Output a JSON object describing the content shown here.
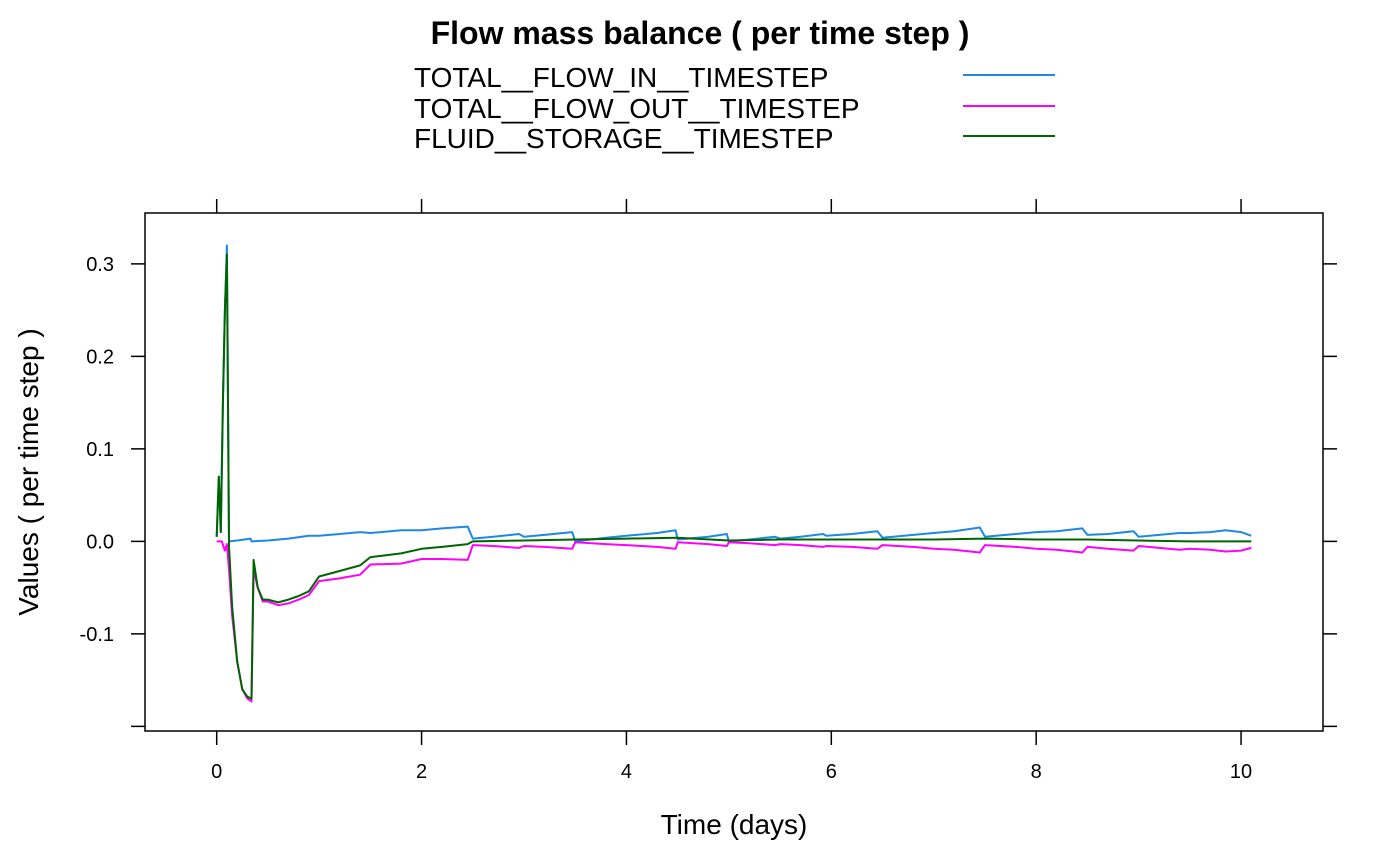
{
  "chart_data": {
    "type": "line",
    "title": "Flow mass balance ( per time step )",
    "xlabel": "Time (days)",
    "ylabel": "Values ( per time step )",
    "xlim": [
      -0.7,
      10.8
    ],
    "ylim": [
      -0.205,
      0.355
    ],
    "x_ticks": [
      0,
      2,
      4,
      6,
      8,
      10
    ],
    "x_tick_labels": [
      "0",
      "2",
      "4",
      "6",
      "8",
      "10"
    ],
    "y_ticks": [
      0.3,
      0.2,
      0.1,
      0.0,
      -0.1,
      -0.2
    ],
    "y_tick_labels": [
      "0.3",
      "0.2",
      "0.1",
      "0.0",
      "-0.1",
      ""
    ],
    "grid": false,
    "legend_position": "top",
    "series": [
      {
        "name": "TOTAL__FLOW_IN__TIMESTEP",
        "color": "#1e88e5",
        "x": [
          0.0,
          0.02,
          0.04,
          0.06,
          0.08,
          0.1,
          0.12,
          0.2,
          0.33,
          0.34,
          0.5,
          0.7,
          0.9,
          1.0,
          1.2,
          1.4,
          1.5,
          1.8,
          2.0,
          2.2,
          2.45,
          2.5,
          2.7,
          2.95,
          3.0,
          3.2,
          3.47,
          3.5,
          3.8,
          4.0,
          4.3,
          4.48,
          4.5,
          4.8,
          4.98,
          5.0,
          5.2,
          5.45,
          5.5,
          5.7,
          5.92,
          5.95,
          6.2,
          6.45,
          6.5,
          6.8,
          7.0,
          7.2,
          7.45,
          7.5,
          7.8,
          8.0,
          8.2,
          8.45,
          8.5,
          8.7,
          8.95,
          9.0,
          9.2,
          9.4,
          9.5,
          9.7,
          9.85,
          10.0,
          10.1
        ],
        "y": [
          0.005,
          0.07,
          0.01,
          0.15,
          0.25,
          0.32,
          0.0,
          0.001,
          0.003,
          0.0,
          0.001,
          0.003,
          0.006,
          0.006,
          0.008,
          0.01,
          0.009,
          0.012,
          0.012,
          0.014,
          0.016,
          0.003,
          0.005,
          0.008,
          0.005,
          0.007,
          0.01,
          0.0,
          0.004,
          0.006,
          0.009,
          0.012,
          0.002,
          0.005,
          0.008,
          0.0,
          0.002,
          0.005,
          0.003,
          0.005,
          0.008,
          0.006,
          0.008,
          0.011,
          0.004,
          0.007,
          0.009,
          0.011,
          0.015,
          0.005,
          0.008,
          0.01,
          0.011,
          0.014,
          0.007,
          0.008,
          0.011,
          0.005,
          0.007,
          0.009,
          0.009,
          0.01,
          0.012,
          0.01,
          0.006
        ]
      },
      {
        "name": "TOTAL__FLOW_OUT__TIMESTEP",
        "color": "#ff00ff",
        "x": [
          0.0,
          0.05,
          0.08,
          0.1,
          0.12,
          0.15,
          0.2,
          0.25,
          0.3,
          0.34,
          0.36,
          0.4,
          0.45,
          0.5,
          0.6,
          0.7,
          0.8,
          0.9,
          1.0,
          1.2,
          1.4,
          1.5,
          1.8,
          2.0,
          2.2,
          2.45,
          2.5,
          2.7,
          2.95,
          3.0,
          3.2,
          3.47,
          3.5,
          3.8,
          4.0,
          4.3,
          4.48,
          4.5,
          4.8,
          4.98,
          5.0,
          5.2,
          5.45,
          5.5,
          5.7,
          5.92,
          5.95,
          6.2,
          6.45,
          6.5,
          6.8,
          7.0,
          7.2,
          7.45,
          7.5,
          7.8,
          8.0,
          8.2,
          8.45,
          8.5,
          8.7,
          8.95,
          9.0,
          9.2,
          9.4,
          9.5,
          9.7,
          9.85,
          10.0,
          10.1
        ],
        "y": [
          0.0,
          0.0,
          -0.01,
          -0.003,
          -0.03,
          -0.08,
          -0.13,
          -0.16,
          -0.17,
          -0.173,
          -0.03,
          -0.05,
          -0.065,
          -0.065,
          -0.069,
          -0.067,
          -0.063,
          -0.058,
          -0.043,
          -0.04,
          -0.036,
          -0.025,
          -0.024,
          -0.019,
          -0.019,
          -0.02,
          -0.004,
          -0.005,
          -0.007,
          -0.005,
          -0.006,
          -0.008,
          -0.001,
          -0.003,
          -0.004,
          -0.006,
          -0.008,
          -0.001,
          -0.003,
          -0.005,
          -0.001,
          -0.002,
          -0.004,
          -0.003,
          -0.004,
          -0.006,
          -0.005,
          -0.006,
          -0.008,
          -0.004,
          -0.006,
          -0.008,
          -0.009,
          -0.012,
          -0.004,
          -0.006,
          -0.008,
          -0.009,
          -0.012,
          -0.006,
          -0.008,
          -0.01,
          -0.005,
          -0.007,
          -0.009,
          -0.008,
          -0.009,
          -0.011,
          -0.01,
          -0.007
        ]
      },
      {
        "name": "FLUID__STORAGE__TIMESTEP",
        "color": "#006400",
        "x": [
          0.0,
          0.02,
          0.04,
          0.06,
          0.08,
          0.1,
          0.12,
          0.15,
          0.2,
          0.25,
          0.3,
          0.34,
          0.36,
          0.4,
          0.45,
          0.5,
          0.6,
          0.7,
          0.8,
          0.9,
          1.0,
          1.2,
          1.4,
          1.5,
          1.8,
          2.0,
          2.2,
          2.45,
          2.5,
          3.0,
          3.5,
          4.0,
          4.5,
          5.0,
          5.5,
          6.0,
          6.5,
          7.0,
          7.5,
          8.0,
          8.5,
          9.0,
          9.5,
          10.0,
          10.1
        ],
        "y": [
          0.005,
          0.07,
          0.01,
          0.15,
          0.25,
          0.31,
          -0.005,
          -0.07,
          -0.13,
          -0.16,
          -0.168,
          -0.17,
          -0.02,
          -0.05,
          -0.063,
          -0.063,
          -0.066,
          -0.063,
          -0.059,
          -0.054,
          -0.038,
          -0.032,
          -0.026,
          -0.017,
          -0.013,
          -0.008,
          -0.006,
          -0.003,
          0.0,
          0.001,
          0.002,
          0.003,
          0.004,
          0.001,
          0.002,
          0.002,
          0.002,
          0.002,
          0.003,
          0.002,
          0.002,
          0.001,
          0.0,
          0.0,
          0.0
        ]
      }
    ]
  }
}
